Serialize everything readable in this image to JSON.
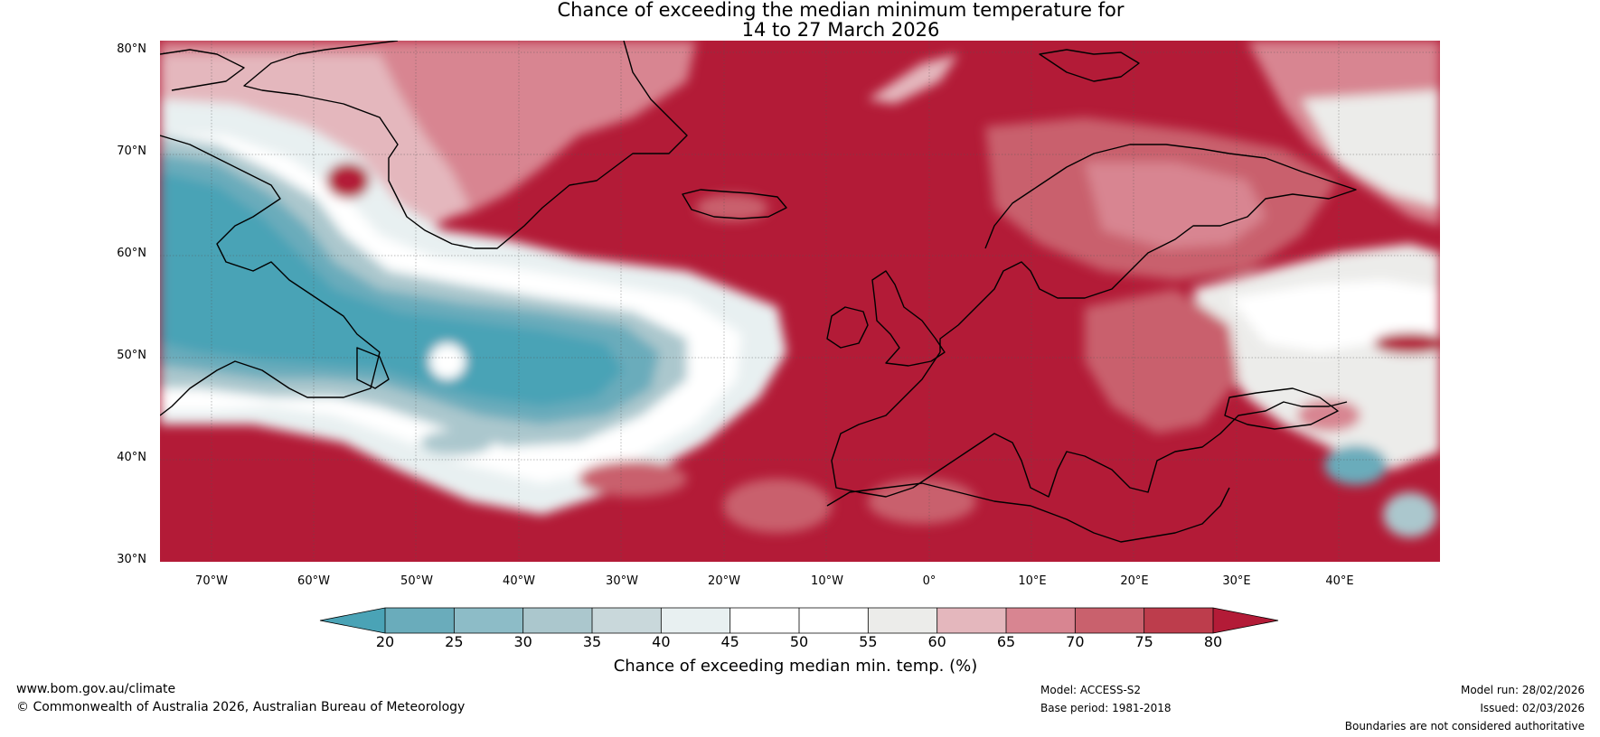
{
  "title": {
    "line1": "Chance of exceeding the median minimum temperature for",
    "line2": "14 to 27 March 2026"
  },
  "map": {
    "lat_labels": [
      "80°N",
      "70°N",
      "60°N",
      "50°N",
      "40°N",
      "30°N"
    ],
    "lon_labels": [
      "70°W",
      "60°W",
      "50°W",
      "40°W",
      "30°W",
      "20°W",
      "10°W",
      "0°",
      "10°E",
      "20°E",
      "30°E",
      "40°E"
    ],
    "lat_range": [
      30,
      80
    ],
    "lon_range": [
      -75,
      50
    ]
  },
  "colorbar": {
    "title": "Chance of exceeding median min. temp. (%)",
    "ticks": [
      "20",
      "25",
      "30",
      "35",
      "40",
      "45",
      "50",
      "55",
      "60",
      "65",
      "70",
      "75",
      "80"
    ],
    "colors": [
      "#4aa3b6",
      "#6aacbb",
      "#8dbcc7",
      "#abc7cd",
      "#c9d8db",
      "#e8f0f1",
      "#ffffff",
      "#ffffff",
      "#ececea",
      "#e4b7bd",
      "#d88591",
      "#c9616d",
      "#bd3d4c",
      "#b31b37"
    ]
  },
  "footer": {
    "website": "www.bom.gov.au/climate",
    "copyright": "© Commonwealth of Australia 2026, Australian Bureau of Meteorology",
    "model": "Model: ACCESS-S2",
    "base_period": "Base period: 1981-2018",
    "model_run": "Model run: 28/02/2026",
    "issued": "Issued: 02/03/2026",
    "disclaimer": "Boundaries are not considered authoritative"
  }
}
